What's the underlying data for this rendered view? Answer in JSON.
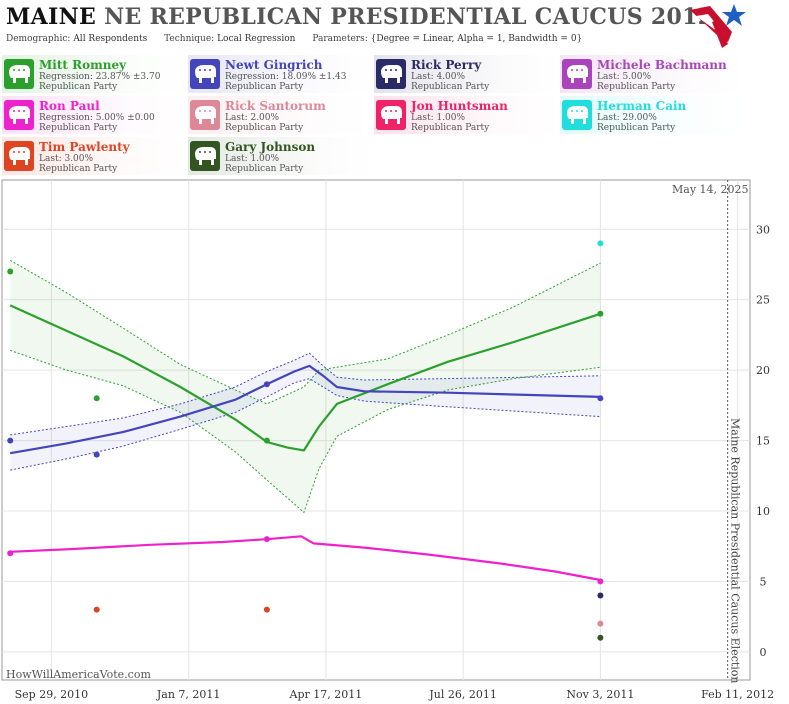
{
  "header": {
    "title_state": "MAINE",
    "title_rest": "NE REPUBLICAN PRESIDENTIAL CAUCUS 2012",
    "demographic_label": "Demographic:",
    "demographic_value": "All Respondents",
    "technique_label": "Technique:",
    "technique_value": "Local Regression",
    "parameters_label": "Parameters:",
    "parameters_value": "{Degree = Linear, Alpha = 1, Bandwidth = 0}"
  },
  "logo": {
    "icon": "flag-star-logo-icon",
    "colors": [
      "#c8102e",
      "#1f5fbf"
    ]
  },
  "candidates": [
    {
      "name": "Mitt Romney",
      "stat": "Regression: 23.87% ±3.70",
      "party": "Republican Party",
      "color": "#2ca02c",
      "icon": "elephant-icon"
    },
    {
      "name": "Newt Gingrich",
      "stat": "Regression: 18.09% ±1.43",
      "party": "Republican Party",
      "color": "#4444bb",
      "icon": "elephant-icon"
    },
    {
      "name": "Rick Perry",
      "stat": "Last: 4.00%",
      "party": "Republican Party",
      "color": "#2a2a66",
      "icon": "elephant-icon"
    },
    {
      "name": "Michele Bachmann",
      "stat": "Last: 5.00%",
      "party": "Republican Party",
      "color": "#aa44bb",
      "icon": "elephant-icon"
    },
    {
      "name": "Ron Paul",
      "stat": "Regression: 5.00% ±0.00",
      "party": "Republican Party",
      "color": "#ee22cc",
      "icon": "elephant-icon"
    },
    {
      "name": "Rick Santorum",
      "stat": "Last: 2.00%",
      "party": "Republican Party",
      "color": "#dd8899",
      "icon": "elephant-icon"
    },
    {
      "name": "Jon Huntsman",
      "stat": "Last: 1.00%",
      "party": "Republican Party",
      "color": "#ee2266",
      "icon": "elephant-icon"
    },
    {
      "name": "Herman Cain",
      "stat": "Last: 29.00%",
      "party": "Republican Party",
      "color": "#22dddd",
      "icon": "elephant-icon"
    },
    {
      "name": "Tim Pawlenty",
      "stat": "Last: 3.00%",
      "party": "Republican Party",
      "color": "#dd4422",
      "icon": "elephant-icon"
    },
    {
      "name": "Gary Johnson",
      "stat": "Last: 1.00%",
      "party": "Republican Party",
      "color": "#335522",
      "icon": "elephant-icon"
    }
  ],
  "chart_data": {
    "type": "scatter",
    "x_domain": [
      "2010-08-24",
      "2012-02-20"
    ],
    "ylim": [
      -2,
      33.5
    ],
    "yticks": [
      0,
      5,
      10,
      15,
      20,
      25,
      30
    ],
    "xticks": [
      {
        "date": "2010-09-29",
        "label": "Sep 29, 2010"
      },
      {
        "date": "2011-01-07",
        "label": "Jan 7, 2011"
      },
      {
        "date": "2011-04-17",
        "label": "Apr 17, 2011"
      },
      {
        "date": "2011-07-26",
        "label": "Jul 26, 2011"
      },
      {
        "date": "2011-11-03",
        "label": "Nov 3, 2011"
      },
      {
        "date": "2012-02-11",
        "label": "Feb 11, 2012"
      }
    ],
    "event": {
      "date": "2012-02-11",
      "label": "Maine Republican Presidential Caucus Election"
    },
    "current_date": "May 14, 2025",
    "credit": "HowWillAmericaVote.com",
    "grid": true,
    "points": [
      {
        "series": "Mitt Romney",
        "date": "2010-08-30",
        "value": 27
      },
      {
        "series": "Mitt Romney",
        "date": "2010-11-01",
        "value": 18
      },
      {
        "series": "Mitt Romney",
        "date": "2011-03-05",
        "value": 15
      },
      {
        "series": "Mitt Romney",
        "date": "2011-11-03",
        "value": 24
      },
      {
        "series": "Newt Gingrich",
        "date": "2010-08-30",
        "value": 15
      },
      {
        "series": "Newt Gingrich",
        "date": "2010-11-01",
        "value": 14
      },
      {
        "series": "Newt Gingrich",
        "date": "2011-03-05",
        "value": 19
      },
      {
        "series": "Newt Gingrich",
        "date": "2011-11-03",
        "value": 18
      },
      {
        "series": "Ron Paul",
        "date": "2010-08-30",
        "value": 7
      },
      {
        "series": "Ron Paul",
        "date": "2011-03-05",
        "value": 8
      },
      {
        "series": "Ron Paul",
        "date": "2011-11-03",
        "value": 5
      },
      {
        "series": "Tim Pawlenty",
        "date": "2010-11-01",
        "value": 3
      },
      {
        "series": "Tim Pawlenty",
        "date": "2011-03-05",
        "value": 3
      },
      {
        "series": "Herman Cain",
        "date": "2011-11-03",
        "value": 29
      },
      {
        "series": "Rick Perry",
        "date": "2011-11-03",
        "value": 4
      },
      {
        "series": "Rick Santorum",
        "date": "2011-11-03",
        "value": 2
      },
      {
        "series": "Gary Johnson",
        "date": "2011-11-03",
        "value": 1
      }
    ],
    "trends": [
      {
        "series": "Mitt Romney",
        "line": [
          [
            "2010-08-30",
            24.6
          ],
          [
            "2010-10-10",
            22.8
          ],
          [
            "2010-11-20",
            21.0
          ],
          [
            "2011-01-01",
            18.8
          ],
          [
            "2011-02-10",
            16.5
          ],
          [
            "2011-03-05",
            14.9
          ],
          [
            "2011-03-20",
            14.5
          ],
          [
            "2011-04-01",
            14.3
          ],
          [
            "2011-04-12",
            16.0
          ],
          [
            "2011-04-25",
            17.6
          ],
          [
            "2011-06-01",
            19.0
          ],
          [
            "2011-07-15",
            20.6
          ],
          [
            "2011-09-01",
            22.0
          ],
          [
            "2011-11-03",
            24.0
          ]
        ],
        "upper": [
          [
            "2010-08-30",
            27.8
          ],
          [
            "2010-10-10",
            25.5
          ],
          [
            "2010-11-20",
            23.0
          ],
          [
            "2011-01-01",
            20.4
          ],
          [
            "2011-02-10",
            18.6
          ],
          [
            "2011-03-05",
            17.6
          ],
          [
            "2011-04-01",
            18.8
          ],
          [
            "2011-04-12",
            20.0
          ],
          [
            "2011-06-01",
            20.8
          ],
          [
            "2011-07-15",
            22.5
          ],
          [
            "2011-09-01",
            24.5
          ],
          [
            "2011-11-03",
            27.6
          ]
        ],
        "lower": [
          [
            "2010-08-30",
            21.4
          ],
          [
            "2010-10-10",
            20.0
          ],
          [
            "2010-11-20",
            18.9
          ],
          [
            "2011-01-01",
            17.0
          ],
          [
            "2011-02-10",
            14.2
          ],
          [
            "2011-03-05",
            12.2
          ],
          [
            "2011-04-01",
            9.9
          ],
          [
            "2011-04-12",
            13.0
          ],
          [
            "2011-04-25",
            15.3
          ],
          [
            "2011-06-01",
            17.2
          ],
          [
            "2011-07-15",
            18.6
          ],
          [
            "2011-09-01",
            19.4
          ],
          [
            "2011-11-03",
            20.2
          ]
        ]
      },
      {
        "series": "Newt Gingrich",
        "line": [
          [
            "2010-08-30",
            14.1
          ],
          [
            "2010-10-10",
            14.8
          ],
          [
            "2010-11-20",
            15.6
          ],
          [
            "2011-01-01",
            16.7
          ],
          [
            "2011-02-10",
            17.9
          ],
          [
            "2011-03-05",
            19.0
          ],
          [
            "2011-03-25",
            19.9
          ],
          [
            "2011-04-05",
            20.3
          ],
          [
            "2011-04-15",
            19.6
          ],
          [
            "2011-04-25",
            18.8
          ],
          [
            "2011-05-15",
            18.5
          ],
          [
            "2011-07-15",
            18.4
          ],
          [
            "2011-11-03",
            18.1
          ]
        ],
        "upper": [
          [
            "2010-08-30",
            15.4
          ],
          [
            "2010-10-10",
            16.0
          ],
          [
            "2010-11-20",
            16.6
          ],
          [
            "2011-01-01",
            17.6
          ],
          [
            "2011-02-10",
            18.8
          ],
          [
            "2011-03-05",
            19.9
          ],
          [
            "2011-03-25",
            20.7
          ],
          [
            "2011-04-05",
            21.2
          ],
          [
            "2011-04-15",
            20.3
          ],
          [
            "2011-04-25",
            19.5
          ],
          [
            "2011-05-15",
            19.3
          ],
          [
            "2011-07-15",
            19.4
          ],
          [
            "2011-11-03",
            19.6
          ]
        ],
        "lower": [
          [
            "2010-08-30",
            12.9
          ],
          [
            "2010-10-10",
            13.7
          ],
          [
            "2010-11-20",
            14.6
          ],
          [
            "2011-01-01",
            15.8
          ],
          [
            "2011-02-10",
            17.0
          ],
          [
            "2011-03-05",
            18.1
          ],
          [
            "2011-03-25",
            19.1
          ],
          [
            "2011-04-05",
            19.4
          ],
          [
            "2011-04-15",
            18.8
          ],
          [
            "2011-04-25",
            18.2
          ],
          [
            "2011-05-15",
            17.8
          ],
          [
            "2011-07-15",
            17.4
          ],
          [
            "2011-11-03",
            16.7
          ]
        ]
      },
      {
        "series": "Ron Paul",
        "line": [
          [
            "2010-08-30",
            7.1
          ],
          [
            "2010-10-15",
            7.3
          ],
          [
            "2010-12-10",
            7.6
          ],
          [
            "2011-02-01",
            7.8
          ],
          [
            "2011-03-05",
            8.0
          ],
          [
            "2011-03-30",
            8.2
          ],
          [
            "2011-04-08",
            7.7
          ],
          [
            "2011-05-15",
            7.4
          ],
          [
            "2011-07-01",
            6.9
          ],
          [
            "2011-08-20",
            6.3
          ],
          [
            "2011-10-01",
            5.7
          ],
          [
            "2011-11-03",
            5.1
          ]
        ]
      }
    ]
  }
}
